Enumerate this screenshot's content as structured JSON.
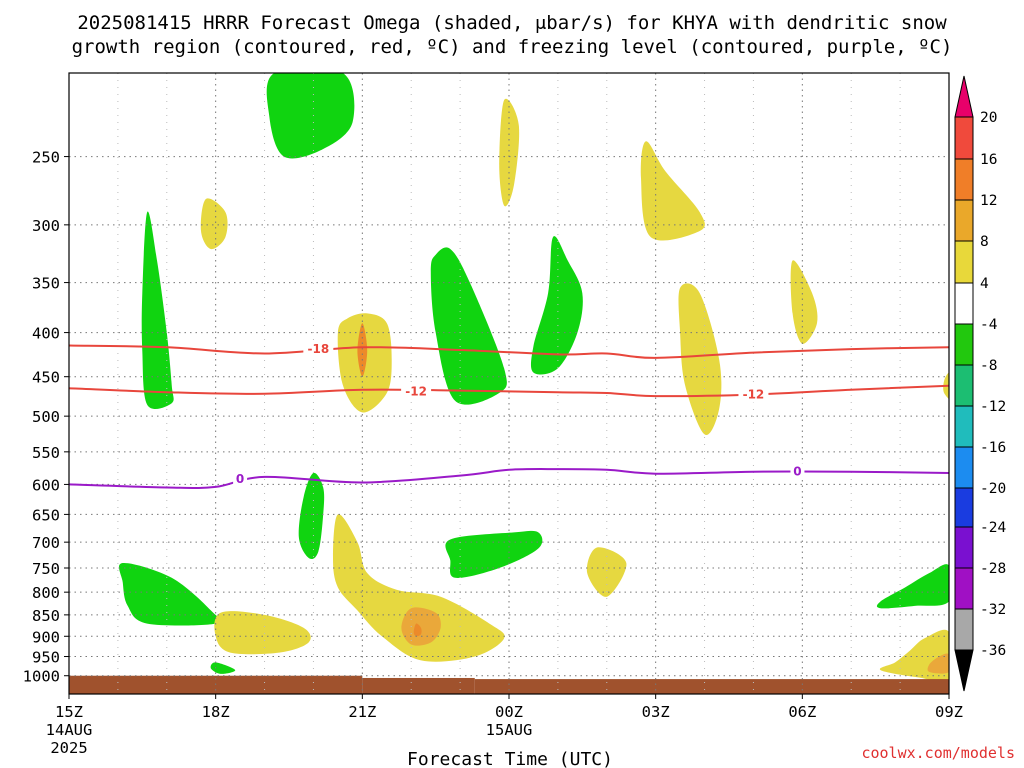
{
  "title": {
    "line1": "2025081415 HRRR Forecast Omega (shaded, μbar/s) for KHYA with dendritic snow",
    "line2": "growth region (contoured, red, ºC) and freezing level (contoured, purple, ºC)"
  },
  "credit": "coolwx.com/models",
  "chart_data": {
    "type": "heatmap",
    "title": "2025081415 HRRR Forecast Omega (shaded, μbar/s) for KHYA with dendritic snow growth region (contoured, red, ºC) and freezing level (contoured, purple, ºC)",
    "xlabel": "Forecast Time (UTC)",
    "ylabel": "",
    "x_range_hours": [
      0,
      18
    ],
    "y_range_mb": [
      200,
      1050
    ],
    "y_scale": "log-pressure",
    "grid": true,
    "x_ticks": [
      {
        "h": 0,
        "lines": [
          "15Z",
          "14AUG",
          "2025"
        ]
      },
      {
        "h": 3,
        "lines": [
          "18Z"
        ]
      },
      {
        "h": 6,
        "lines": [
          "21Z"
        ]
      },
      {
        "h": 9,
        "lines": [
          "00Z",
          "15AUG"
        ]
      },
      {
        "h": 12,
        "lines": [
          "03Z"
        ]
      },
      {
        "h": 15,
        "lines": [
          "06Z"
        ]
      },
      {
        "h": 18,
        "lines": [
          "09Z"
        ]
      }
    ],
    "y_ticks": [
      "250",
      "300",
      "350",
      "400",
      "450",
      "500",
      "550",
      "600",
      "650",
      "700",
      "750",
      "800",
      "850",
      "900",
      "950",
      "1000"
    ],
    "colorbar": {
      "labels": [
        "20",
        "16",
        "12",
        "8",
        "4",
        "-4",
        "-8",
        "-12",
        "-16",
        "-20",
        "-24",
        "-28",
        "-32",
        "-36"
      ],
      "colors": [
        "#e8006a",
        "#f04a3c",
        "#f07e28",
        "#eaa82a",
        "#e8d83a",
        "#ffffff",
        "#22c80e",
        "#1cbe72",
        "#20bcbc",
        "#1c8cf0",
        "#1a3ce0",
        "#7a10d0",
        "#a010c4",
        "#a8a8a8",
        "#000000"
      ],
      "extend": "both"
    },
    "shading_colors": {
      "yellow": "#e6d840",
      "orange_light": "#eaa83a",
      "orange_dark": "#ec8a2a",
      "green": "#10d410",
      "ground": "#a0522d"
    },
    "contours": [
      {
        "label": "-18",
        "color": "#e8463c",
        "points": [
          [
            0,
            414
          ],
          [
            2,
            416
          ],
          [
            4,
            423
          ],
          [
            6,
            416
          ],
          [
            8,
            419
          ],
          [
            10,
            424
          ],
          [
            11,
            423
          ],
          [
            12,
            428
          ],
          [
            14,
            422
          ],
          [
            16,
            418
          ],
          [
            18,
            416
          ]
        ]
      },
      {
        "label": "-12",
        "color": "#e8463c",
        "points": [
          [
            0,
            464
          ],
          [
            2,
            469
          ],
          [
            4,
            471
          ],
          [
            6,
            466
          ],
          [
            8,
            467
          ],
          [
            10,
            469
          ],
          [
            11,
            470
          ],
          [
            12,
            474
          ],
          [
            14,
            472
          ],
          [
            16,
            466
          ],
          [
            18,
            461
          ]
        ]
      },
      {
        "label": "0",
        "color": "#9a1ac8",
        "points": [
          [
            0,
            600
          ],
          [
            2,
            605
          ],
          [
            3,
            604
          ],
          [
            4,
            588
          ],
          [
            6,
            597
          ],
          [
            8,
            586
          ],
          [
            9,
            577
          ],
          [
            10,
            576
          ],
          [
            11,
            577
          ],
          [
            12,
            583
          ],
          [
            14,
            580
          ],
          [
            16,
            580
          ],
          [
            18,
            582
          ]
        ]
      }
    ],
    "contour_labels": [
      {
        "text": "-18",
        "h": 5.1,
        "p": 418,
        "color": "#e8463c"
      },
      {
        "text": "-12",
        "h": 7.1,
        "p": 468,
        "color": "#e8463c"
      },
      {
        "text": "-12",
        "h": 14.0,
        "p": 472,
        "color": "#e8463c"
      },
      {
        "text": "0",
        "h": 3.5,
        "p": 591,
        "color": "#9a1ac8"
      },
      {
        "text": "0",
        "h": 14.9,
        "p": 580,
        "color": "#9a1ac8"
      }
    ],
    "omega_regions": [
      {
        "color": "green",
        "points": [
          [
            4.2,
            200
          ],
          [
            5.6,
            200
          ],
          [
            5.8,
            228
          ],
          [
            5.2,
            245
          ],
          [
            4.4,
            250
          ],
          [
            4.1,
            225
          ]
        ]
      },
      {
        "color": "yellow",
        "points": [
          [
            2.8,
            280
          ],
          [
            3.2,
            290
          ],
          [
            3.2,
            310
          ],
          [
            2.9,
            320
          ],
          [
            2.7,
            305
          ]
        ]
      },
      {
        "color": "yellow",
        "points": [
          [
            8.9,
            215
          ],
          [
            9.2,
            230
          ],
          [
            9.1,
            270
          ],
          [
            8.9,
            285
          ],
          [
            8.8,
            255
          ]
        ]
      },
      {
        "color": "yellow",
        "points": [
          [
            11.8,
            240
          ],
          [
            12.2,
            260
          ],
          [
            12.9,
            290
          ],
          [
            12.9,
            305
          ],
          [
            11.9,
            310
          ],
          [
            11.7,
            265
          ]
        ]
      },
      {
        "color": "yellow",
        "points": [
          [
            14.8,
            330
          ],
          [
            15.2,
            360
          ],
          [
            15.3,
            390
          ],
          [
            15.0,
            412
          ],
          [
            14.8,
            380
          ]
        ]
      },
      {
        "color": "green",
        "points": [
          [
            1.6,
            290
          ],
          [
            1.8,
            330
          ],
          [
            2.0,
            400
          ],
          [
            2.1,
            460
          ],
          [
            2.1,
            483
          ],
          [
            1.6,
            485
          ],
          [
            1.5,
            420
          ],
          [
            1.5,
            360
          ]
        ]
      },
      {
        "color": "yellow",
        "points": [
          [
            6.1,
            380
          ],
          [
            6.5,
            390
          ],
          [
            6.6,
            430
          ],
          [
            6.5,
            470
          ],
          [
            6.0,
            495
          ],
          [
            5.6,
            460
          ],
          [
            5.5,
            400
          ],
          [
            5.7,
            385
          ]
        ]
      },
      {
        "color": "orange_dark",
        "points": [
          [
            6.0,
            390
          ],
          [
            6.1,
            420
          ],
          [
            6.0,
            450
          ],
          [
            5.9,
            420
          ]
        ]
      },
      {
        "color": "green",
        "points": [
          [
            7.5,
            325
          ],
          [
            7.8,
            320
          ],
          [
            8.2,
            350
          ],
          [
            8.9,
            440
          ],
          [
            8.8,
            470
          ],
          [
            7.9,
            480
          ],
          [
            7.5,
            400
          ],
          [
            7.4,
            340
          ]
        ]
      },
      {
        "color": "green",
        "points": [
          [
            9.9,
            310
          ],
          [
            10.2,
            330
          ],
          [
            10.5,
            360
          ],
          [
            10.4,
            400
          ],
          [
            10.0,
            440
          ],
          [
            9.5,
            445
          ],
          [
            9.5,
            415
          ],
          [
            9.8,
            360
          ]
        ]
      },
      {
        "color": "yellow",
        "points": [
          [
            12.5,
            355
          ],
          [
            12.9,
            360
          ],
          [
            13.3,
            430
          ],
          [
            13.3,
            490
          ],
          [
            13.0,
            525
          ],
          [
            12.6,
            460
          ],
          [
            12.5,
            400
          ]
        ]
      },
      {
        "color": "yellow",
        "points": [
          [
            18,
            445
          ],
          [
            18.1,
            450
          ],
          [
            18.1,
            480
          ],
          [
            17.9,
            470
          ],
          [
            17.9,
            455
          ]
        ]
      },
      {
        "color": "green",
        "points": [
          [
            5.0,
            582
          ],
          [
            5.2,
            605
          ],
          [
            5.2,
            650
          ],
          [
            5.1,
            718
          ],
          [
            4.9,
            730
          ],
          [
            4.7,
            690
          ],
          [
            4.8,
            620
          ]
        ]
      },
      {
        "color": "green",
        "points": [
          [
            7.8,
            695
          ],
          [
            9.1,
            682
          ],
          [
            9.6,
            682
          ],
          [
            9.6,
            712
          ],
          [
            8.8,
            750
          ],
          [
            7.9,
            770
          ],
          [
            7.8,
            735
          ]
        ]
      },
      {
        "color": "green",
        "points": [
          [
            1.1,
            740
          ],
          [
            2.1,
            770
          ],
          [
            2.9,
            840
          ],
          [
            3.0,
            870
          ],
          [
            1.6,
            870
          ],
          [
            1.2,
            830
          ],
          [
            1.1,
            780
          ]
        ]
      },
      {
        "color": "yellow",
        "points": [
          [
            10.8,
            710
          ],
          [
            11.4,
            740
          ],
          [
            11.0,
            810
          ],
          [
            10.6,
            760
          ]
        ]
      },
      {
        "color": "yellow",
        "points": [
          [
            5.5,
            650
          ],
          [
            5.9,
            700
          ],
          [
            6.1,
            760
          ],
          [
            6.7,
            795
          ],
          [
            7.6,
            810
          ],
          [
            8.6,
            870
          ],
          [
            8.9,
            905
          ],
          [
            8.3,
            950
          ],
          [
            7.2,
            960
          ],
          [
            6.4,
            900
          ],
          [
            5.9,
            840
          ],
          [
            5.5,
            790
          ],
          [
            5.4,
            730
          ]
        ]
      },
      {
        "color": "orange_light",
        "points": [
          [
            7.0,
            835
          ],
          [
            7.5,
            845
          ],
          [
            7.6,
            880
          ],
          [
            7.4,
            915
          ],
          [
            7.0,
            920
          ],
          [
            6.8,
            880
          ]
        ]
      },
      {
        "color": "orange_dark",
        "points": [
          [
            7.1,
            870
          ],
          [
            7.2,
            880
          ],
          [
            7.2,
            895
          ],
          [
            7.1,
            900
          ],
          [
            7.05,
            890
          ]
        ]
      },
      {
        "color": "yellow",
        "points": [
          [
            3.1,
            845
          ],
          [
            4.0,
            850
          ],
          [
            4.8,
            880
          ],
          [
            4.9,
            915
          ],
          [
            4.3,
            940
          ],
          [
            3.3,
            940
          ],
          [
            3.0,
            900
          ]
        ]
      },
      {
        "color": "green",
        "points": [
          [
            3.0,
            965
          ],
          [
            3.4,
            985
          ],
          [
            3.1,
            995
          ],
          [
            2.9,
            980
          ]
        ]
      },
      {
        "color": "green",
        "points": [
          [
            17.6,
            760
          ],
          [
            18,
            745
          ],
          [
            18,
            820
          ],
          [
            17.3,
            830
          ],
          [
            16.6,
            835
          ],
          [
            16.6,
            820
          ],
          [
            17.1,
            790
          ]
        ]
      },
      {
        "color": "yellow",
        "points": [
          [
            17.5,
            905
          ],
          [
            18,
            890
          ],
          [
            18,
            1010
          ],
          [
            17.4,
            1005
          ],
          [
            16.6,
            985
          ],
          [
            16.9,
            965
          ],
          [
            17.2,
            935
          ]
        ]
      },
      {
        "color": "orange_light",
        "points": [
          [
            17.8,
            950
          ],
          [
            18,
            945
          ],
          [
            18,
            990
          ],
          [
            17.6,
            990
          ],
          [
            17.6,
            970
          ]
        ]
      }
    ],
    "ground": {
      "segments": [
        [
          0,
          6.0,
          1000
        ],
        [
          6.0,
          8.3,
          1006
        ],
        [
          8.3,
          18,
          1009
        ]
      ]
    }
  }
}
